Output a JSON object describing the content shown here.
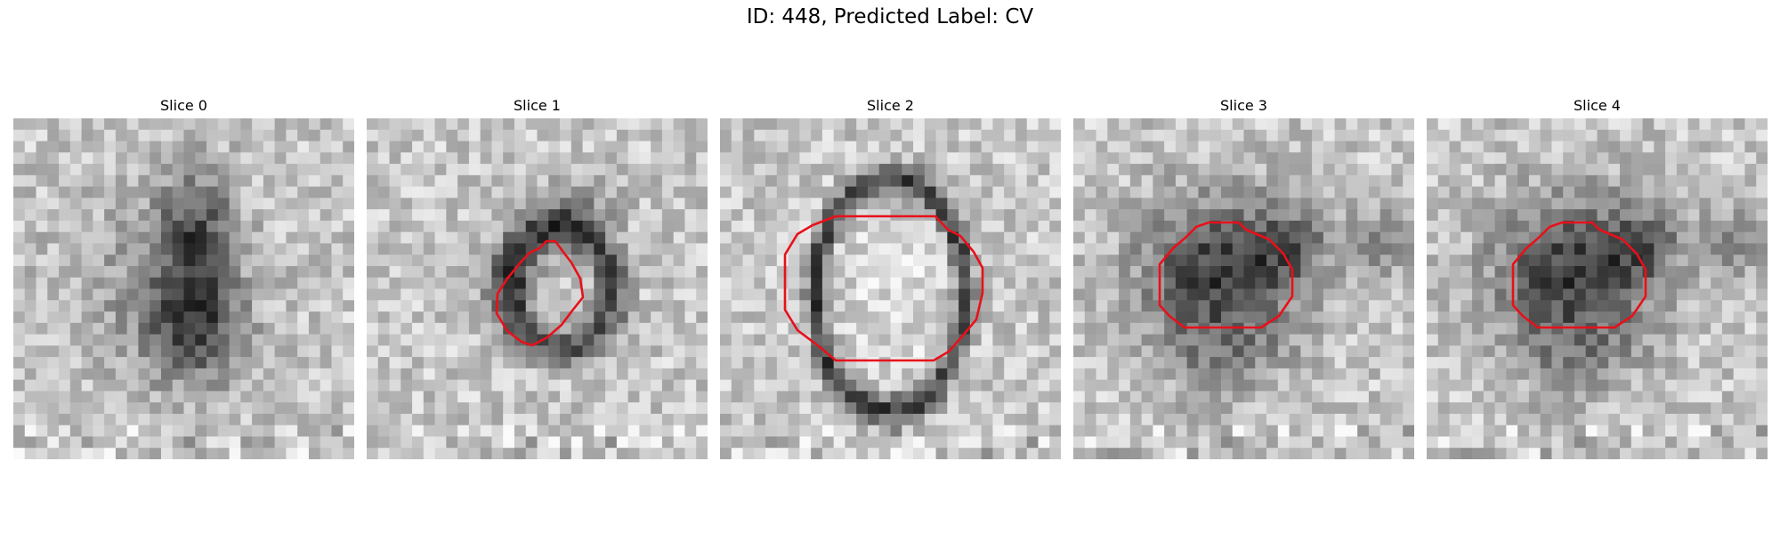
{
  "figure": {
    "title": "ID: 448, Predicted Label: CV"
  },
  "slices": [
    {
      "label": "Slice 0",
      "pattern": "faint-blob",
      "has_contour": false,
      "contour_label": ""
    },
    {
      "label": "Slice 1",
      "pattern": "small-ring",
      "has_contour": true
    },
    {
      "label": "Slice 2",
      "pattern": "large-ring",
      "has_contour": true
    },
    {
      "label": "Slice 3",
      "pattern": "dark-mass",
      "has_contour": true
    },
    {
      "label": "Slice 4",
      "pattern": "dark-mass",
      "has_contour": true
    }
  ],
  "colors": {
    "contour": "#e8101a",
    "background": "#ffffff"
  },
  "grid_cells": 30
}
